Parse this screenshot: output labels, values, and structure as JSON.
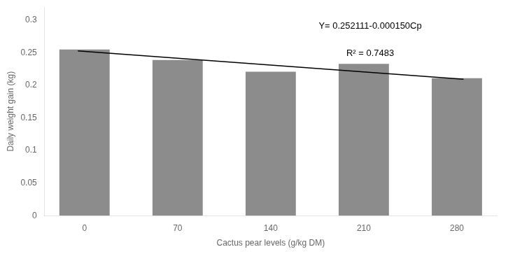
{
  "chart_data": {
    "type": "bar",
    "xlabel": "Cactus pear levels (g/kg DM)",
    "ylabel": "Daily weight gain (kg)",
    "series": [
      {
        "type": "bar",
        "color": "#8c8c8c",
        "x": [
          0,
          70,
          140,
          210,
          280
        ],
        "values": [
          0.255,
          0.239,
          0.221,
          0.233,
          0.211
        ]
      },
      {
        "type": "line",
        "color": "#000000",
        "x": [
          -5,
          285
        ],
        "values": [
          0.252861,
          0.209361
        ]
      }
    ],
    "xlim": [
      -30,
      310
    ],
    "xticks": [
      0,
      70,
      140,
      210,
      280
    ],
    "ylim": [
      0,
      0.32
    ],
    "yticks": [
      0,
      0.05,
      0.1,
      0.15,
      0.2,
      0.25,
      0.3
    ],
    "annotations": [
      {
        "text": "Y= 0.252111-0.000150Cp"
      },
      {
        "text": "R² = 0.7483"
      }
    ],
    "grid": false
  }
}
